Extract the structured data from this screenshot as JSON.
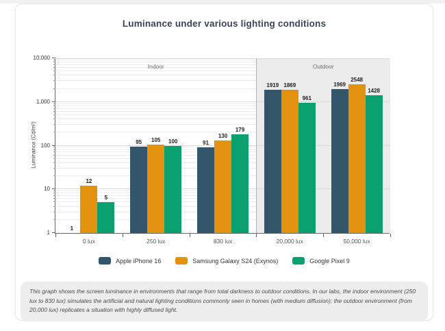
{
  "title": "Luminance under various lighting conditions",
  "chart_data": {
    "type": "bar",
    "scale": "log",
    "title": "Luminance under various lighting conditions",
    "ylabel": "Luminance (Cd/m²)",
    "xlabel": "",
    "ylim": [
      1,
      10000
    ],
    "ytick_labels": [
      "1",
      "10",
      "100",
      "1,000",
      "10,000"
    ],
    "grid": true,
    "legend_position": "bottom",
    "categories": [
      "0 lux",
      "250 lux",
      "830 lux",
      "20,000 lux",
      "50,000 lux"
    ],
    "series": [
      {
        "name": "Apple iPhone 16",
        "color": "#33566b",
        "values": [
          1,
          95,
          91,
          1919,
          1969
        ]
      },
      {
        "name": "Samsung Galaxy S24 (Exynos)",
        "color": "#e2920f",
        "values": [
          12,
          105,
          130,
          1869,
          2548
        ]
      },
      {
        "name": "Google Pixel 9",
        "color": "#0aa070",
        "values": [
          5,
          100,
          179,
          961,
          1428
        ]
      }
    ],
    "regions": [
      {
        "label": "Indoor",
        "categories_span": [
          0,
          3
        ],
        "background": "#ffffff"
      },
      {
        "label": "Outdoor",
        "categories_span": [
          3,
          5
        ],
        "background": "#ebebeb"
      }
    ]
  },
  "footnote": "This graph shows the screen luminance in environments that range from total darkness to outdoor conditions. In our labs, the indoor environment (250 lux to 830 lux) simulates the artificial and natural lighting conditions commonly seen in homes (with medium diffusion); the outdoor environment (from 20,000 lux) replicates a situation with highly diffused light."
}
